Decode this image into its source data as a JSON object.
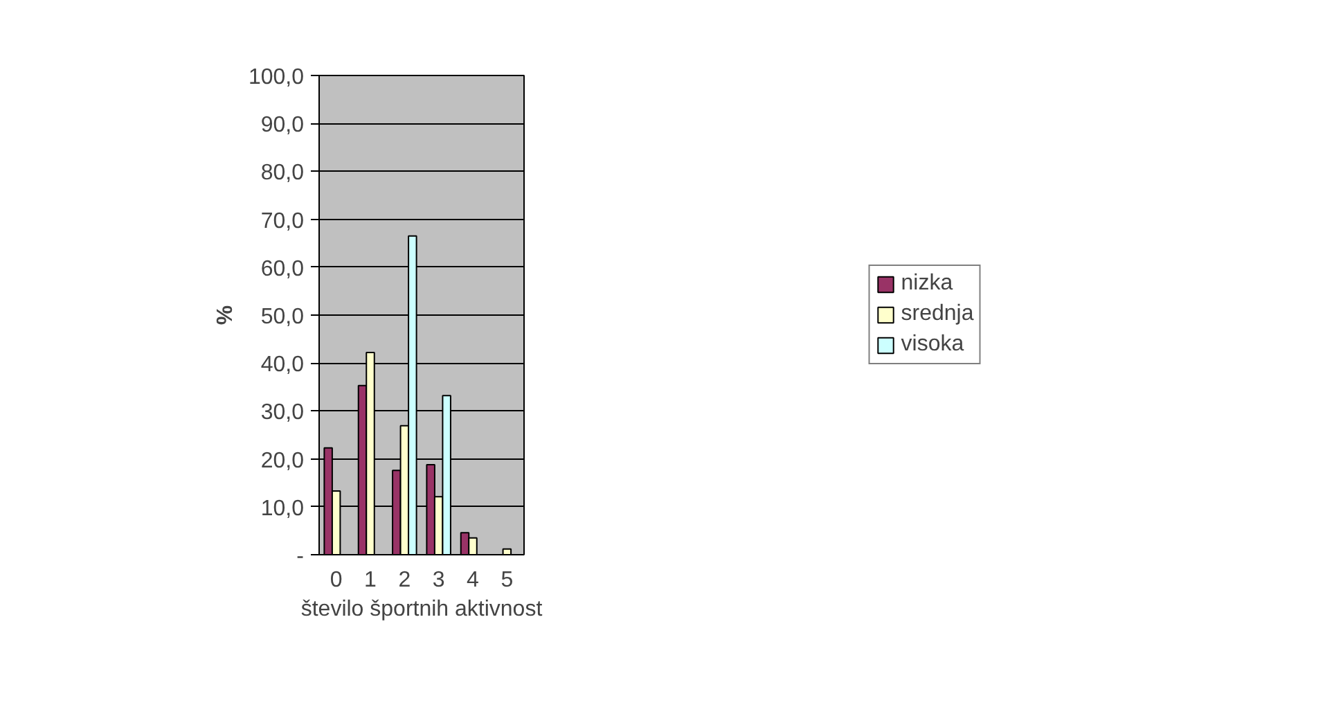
{
  "chart_data": {
    "type": "bar",
    "xlabel": "število športnih aktivnost",
    "ylabel": "%",
    "categories": [
      "0",
      "1",
      "2",
      "3",
      "4",
      "5"
    ],
    "series": [
      {
        "name": "nizka",
        "color": "#993366",
        "values": [
          22.3,
          35.3,
          17.6,
          18.8,
          4.6,
          null
        ]
      },
      {
        "name": "srednja",
        "color": "#ffffcc",
        "values": [
          13.3,
          42.2,
          26.9,
          12.1,
          3.5,
          1.2
        ]
      },
      {
        "name": "visoka",
        "color": "#ccffff",
        "values": [
          null,
          null,
          66.5,
          33.2,
          null,
          null
        ]
      }
    ],
    "ylim": [
      0,
      100
    ],
    "yticks": [
      {
        "value": 0,
        "label": "-"
      },
      {
        "value": 10,
        "label": "10,0"
      },
      {
        "value": 20,
        "label": "20,0"
      },
      {
        "value": 30,
        "label": "30,0"
      },
      {
        "value": 40,
        "label": "40,0"
      },
      {
        "value": 50,
        "label": "50,0"
      },
      {
        "value": 60,
        "label": "60,0"
      },
      {
        "value": 70,
        "label": "70,0"
      },
      {
        "value": 80,
        "label": "80,0"
      },
      {
        "value": 90,
        "label": "90,0"
      },
      {
        "value": 100,
        "label": "100,0"
      }
    ],
    "grid": "y",
    "legend": "right"
  }
}
